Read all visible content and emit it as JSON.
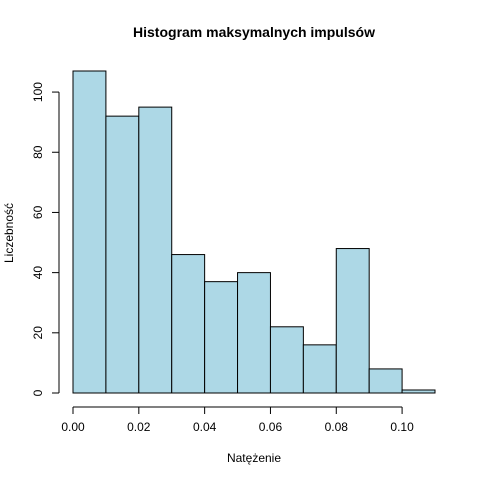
{
  "chart_data": {
    "type": "bar",
    "title": "Histogram maksymalnych impulsów",
    "xlabel": "Natężenie",
    "ylabel": "Liczebność",
    "bin_width": 0.01,
    "bins": [
      {
        "start": 0.0,
        "end": 0.01,
        "count": 107
      },
      {
        "start": 0.01,
        "end": 0.02,
        "count": 92
      },
      {
        "start": 0.02,
        "end": 0.03,
        "count": 95
      },
      {
        "start": 0.03,
        "end": 0.04,
        "count": 46
      },
      {
        "start": 0.04,
        "end": 0.05,
        "count": 37
      },
      {
        "start": 0.05,
        "end": 0.06,
        "count": 40
      },
      {
        "start": 0.06,
        "end": 0.07,
        "count": 22
      },
      {
        "start": 0.07,
        "end": 0.08,
        "count": 16
      },
      {
        "start": 0.08,
        "end": 0.09,
        "count": 48
      },
      {
        "start": 0.09,
        "end": 0.1,
        "count": 8
      },
      {
        "start": 0.1,
        "end": 0.11,
        "count": 1
      }
    ],
    "xlim": [
      0.0,
      0.11
    ],
    "ylim": [
      0,
      107
    ],
    "x_ticks": [
      0.0,
      0.02,
      0.04,
      0.06,
      0.08,
      0.1
    ],
    "x_tick_labels": [
      "0.00",
      "0.02",
      "0.04",
      "0.06",
      "0.08",
      "0.10"
    ],
    "y_ticks": [
      0,
      20,
      40,
      60,
      80,
      100
    ],
    "y_tick_labels": [
      "0",
      "20",
      "40",
      "60",
      "80",
      "100"
    ],
    "bar_color": "#add8e6",
    "border_color": "#000000",
    "grid": false
  }
}
